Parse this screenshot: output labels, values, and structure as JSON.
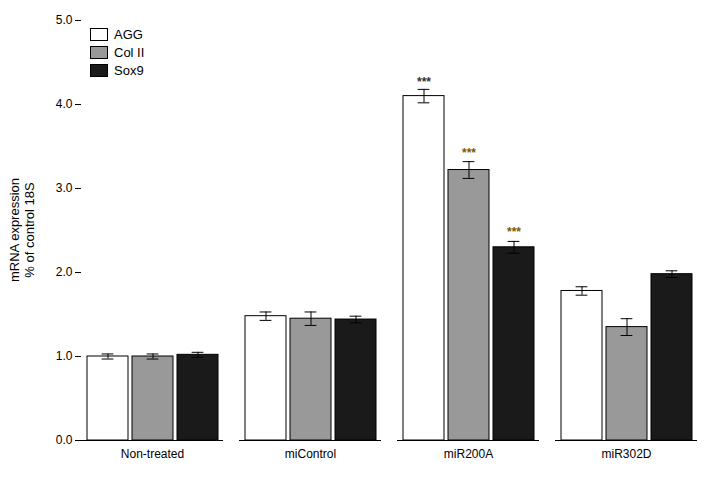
{
  "chart_data": {
    "type": "bar",
    "categories": [
      "Non-treated",
      "miControl",
      "miR200A",
      "miR302D"
    ],
    "series": [
      {
        "name": "AGG",
        "color": "#FFFFFF",
        "values": [
          1.0,
          1.48,
          4.1,
          1.78
        ],
        "errors": [
          0.03,
          0.05,
          0.08,
          0.05
        ]
      },
      {
        "name": "Col II",
        "color": "#999999",
        "values": [
          1.0,
          1.45,
          3.22,
          1.35
        ],
        "errors": [
          0.03,
          0.08,
          0.1,
          0.1
        ]
      },
      {
        "name": "Sox9",
        "color": "#1a1a1a",
        "values": [
          1.02,
          1.44,
          2.3,
          1.98
        ],
        "errors": [
          0.03,
          0.04,
          0.07,
          0.04
        ]
      }
    ],
    "ylabel": "mRNA expression\n% of control 18S",
    "ylim": [
      0,
      5
    ],
    "yticks": [
      0,
      1,
      2,
      3,
      4,
      5
    ],
    "grid": false,
    "legend": "upper left",
    "annotations": [
      {
        "text": "***",
        "category": "miR200A",
        "series": "AGG",
        "y": 4.22,
        "color": "#333333"
      },
      {
        "text": "***",
        "category": "miR200A",
        "series": "Col II",
        "y": 3.38,
        "color": "#7a5c00"
      },
      {
        "text": "***",
        "category": "miR200A",
        "series": "Sox9",
        "y": 2.44,
        "color": "#7a5c00"
      }
    ]
  }
}
